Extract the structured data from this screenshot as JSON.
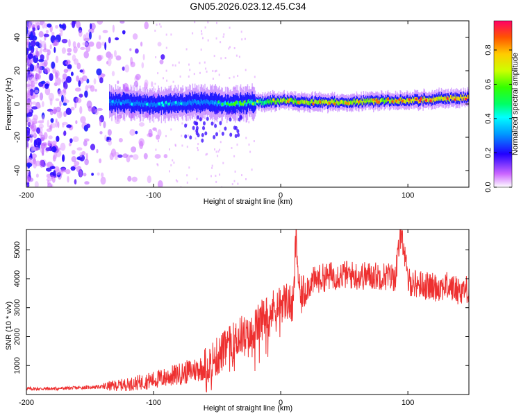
{
  "title": "GN05.2026.023.12.45.C34",
  "chart_data": [
    {
      "type": "heatmap",
      "xlabel": "Height of straight line (km)",
      "ylabel": "Frequency (Hz)",
      "xlim": [
        -200,
        148
      ],
      "ylim": [
        -50,
        50
      ],
      "xticks": [
        -200,
        -100,
        0,
        100
      ],
      "yticks": [
        -40,
        -20,
        0,
        20,
        40
      ],
      "colorbar": {
        "label": "Normalized spectral amplitude",
        "range": [
          0,
          0.97
        ],
        "ticks": [
          0.0,
          0.2,
          0.4,
          0.6,
          0.8
        ]
      },
      "ridge": {
        "description_points_x": [
          -130,
          -100,
          -60,
          -40,
          -20,
          0,
          20,
          50,
          80,
          100,
          148
        ],
        "center_freq_hz": [
          1,
          0,
          1,
          0,
          1,
          2,
          1,
          1,
          2,
          2,
          4
        ],
        "peak_amplitude": [
          0.35,
          0.4,
          0.45,
          0.55,
          0.65,
          0.8,
          0.85,
          0.85,
          0.85,
          0.9,
          0.95
        ]
      }
    },
    {
      "type": "line",
      "xlabel": "Height of straight line (km)",
      "ylabel": "SNR (10 * v/v)",
      "xlim": [
        -200,
        148
      ],
      "ylim": [
        0,
        5700
      ],
      "xticks": [
        -200,
        -100,
        0,
        100
      ],
      "yticks": [
        1000,
        2000,
        3000,
        4000,
        5000
      ],
      "color": "#ee3030",
      "series": [
        {
          "name": "SNR",
          "x": [
            -200,
            -180,
            -160,
            -140,
            -120,
            -100,
            -80,
            -60,
            -50,
            -40,
            -30,
            -25,
            -20,
            -15,
            -10,
            -5,
            0,
            5,
            10,
            12,
            15,
            20,
            25,
            30,
            40,
            50,
            60,
            70,
            80,
            90,
            95,
            100,
            110,
            120,
            130,
            140,
            148
          ],
          "y": [
            200,
            200,
            230,
            270,
            350,
            500,
            700,
            950,
            1300,
            1700,
            2100,
            1900,
            2300,
            2600,
            2800,
            3000,
            3150,
            3250,
            3000,
            5500,
            3300,
            3700,
            3900,
            4000,
            4100,
            4150,
            4100,
            4100,
            4100,
            4050,
            5700,
            3900,
            3800,
            3700,
            3750,
            3600,
            3650
          ]
        }
      ]
    }
  ]
}
